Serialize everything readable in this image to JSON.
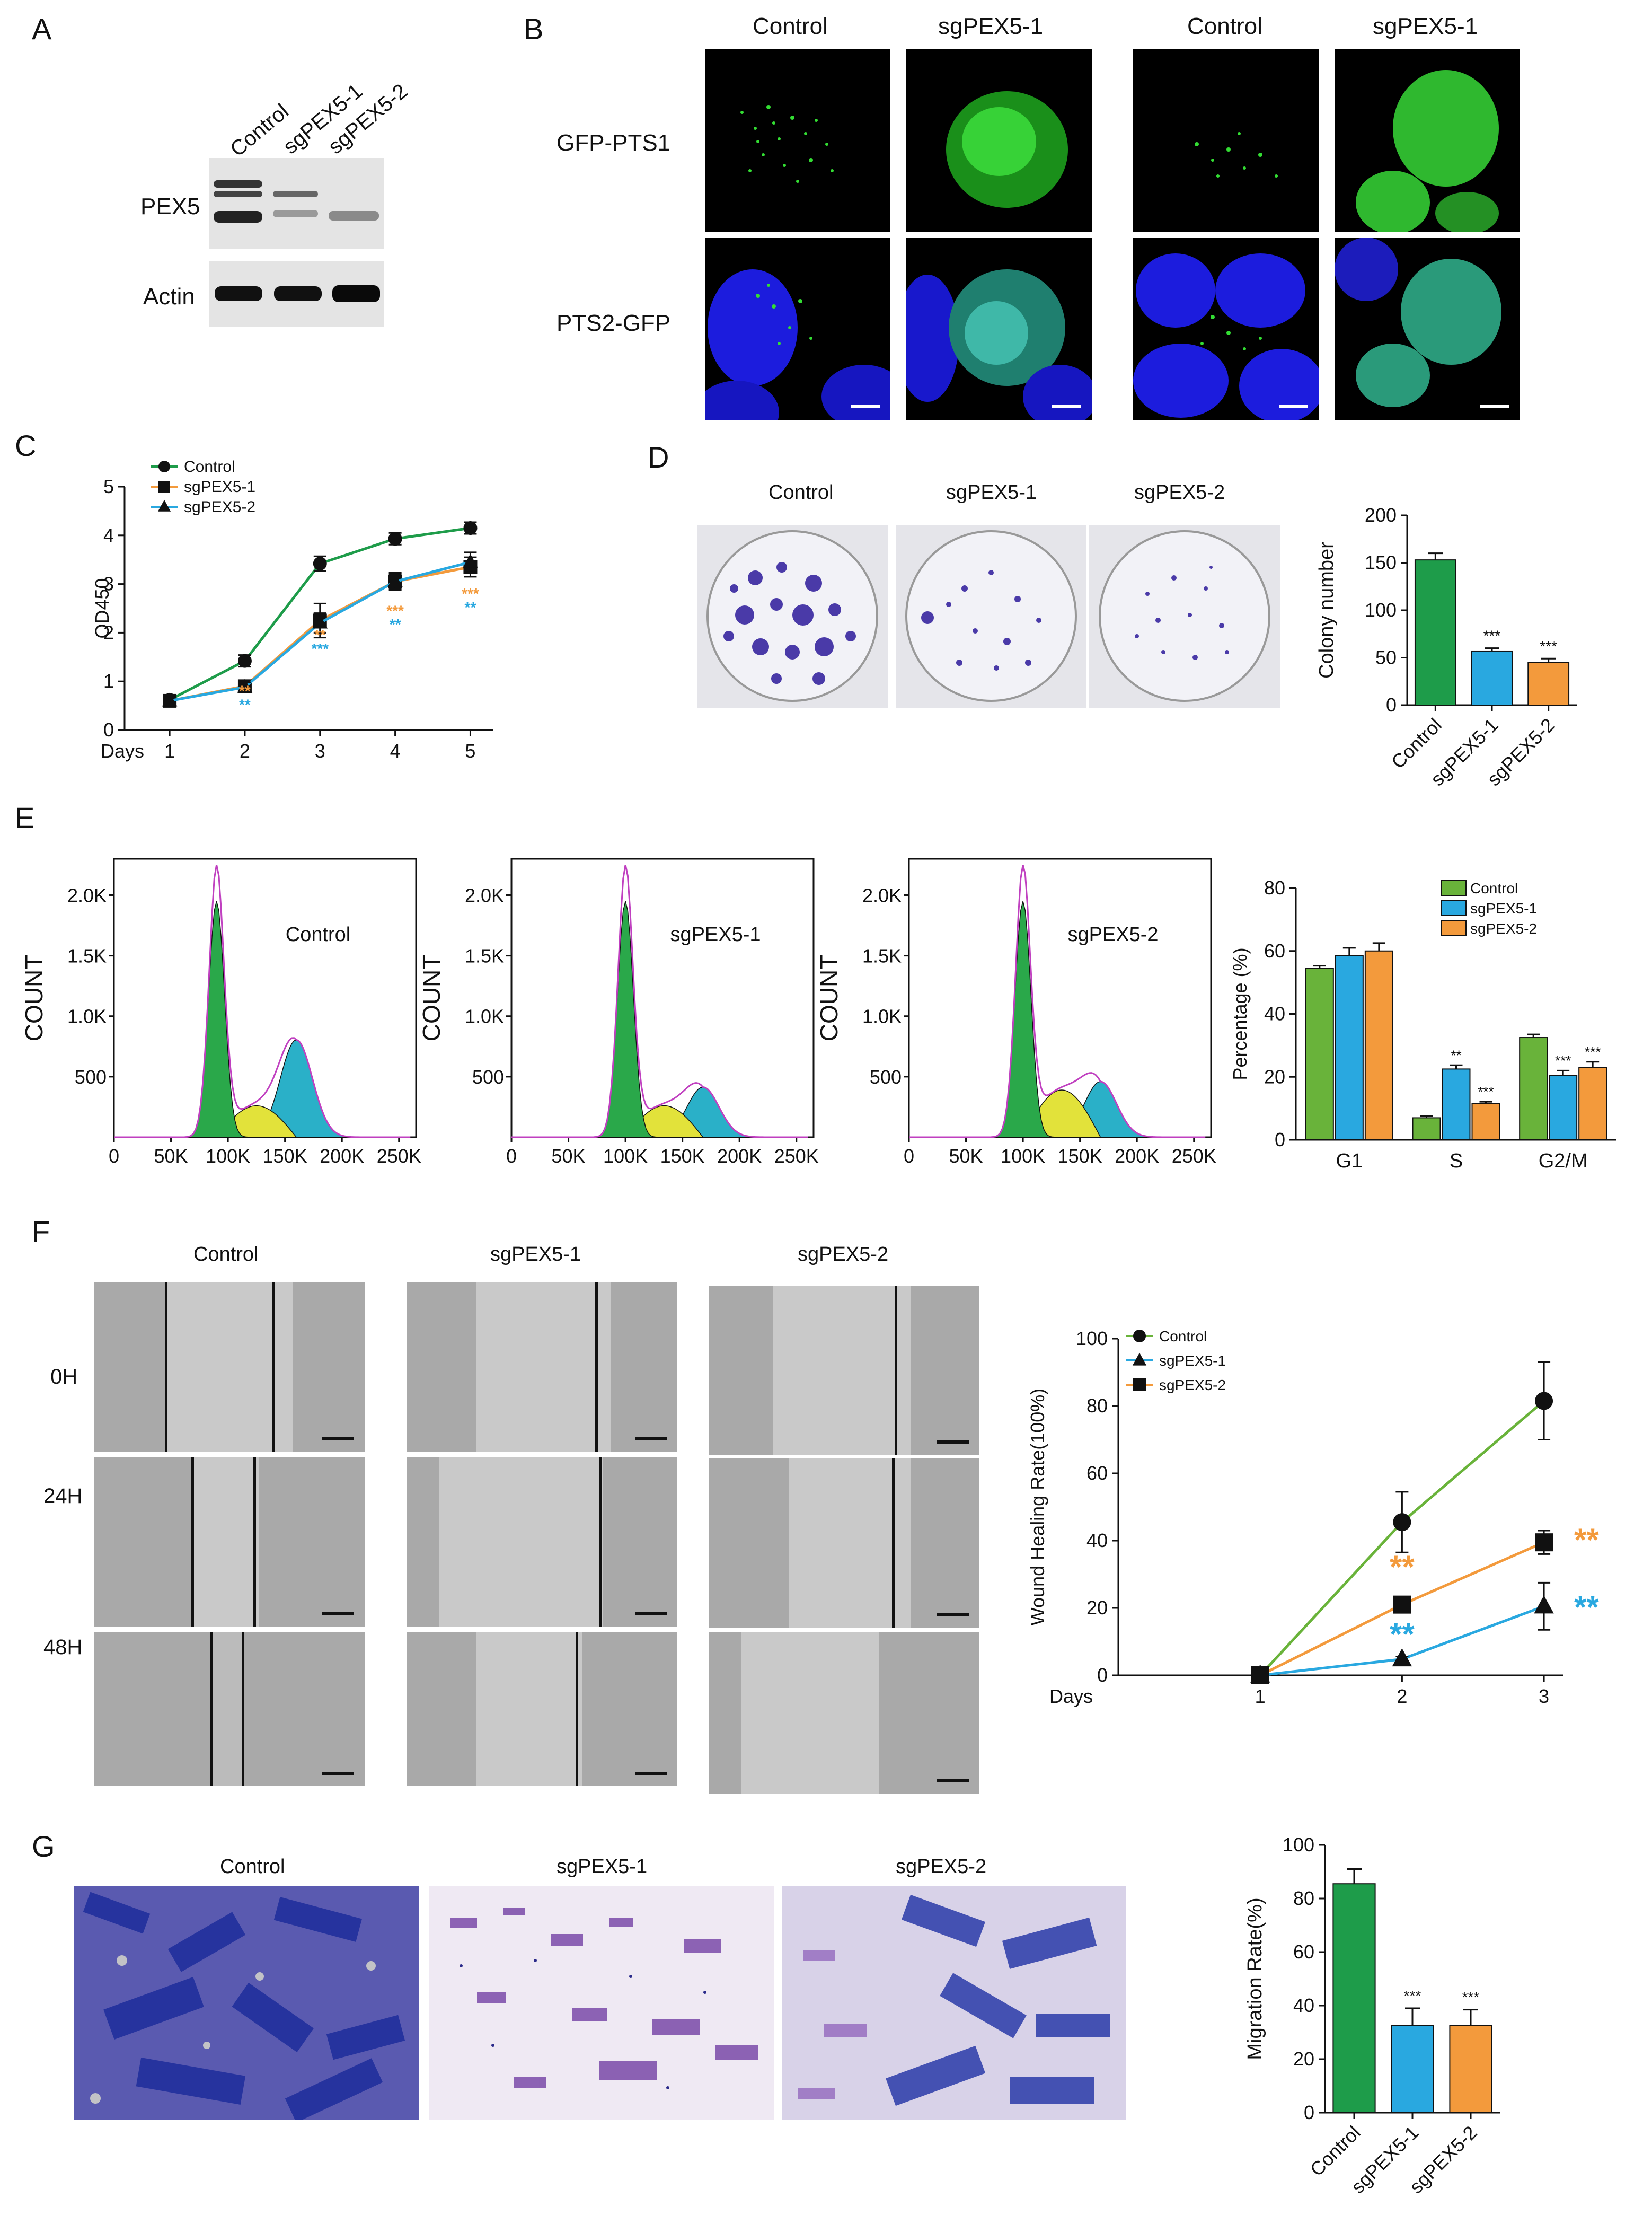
{
  "panels": {
    "A": {
      "letter": "A",
      "lanes": [
        "Control",
        "sgPEX5-1",
        "sgPEX5-2"
      ],
      "rows": [
        "PEX5",
        "Actin"
      ]
    },
    "B": {
      "letter": "B",
      "columns": [
        "Control",
        "sgPEX5-1",
        "Control",
        "sgPEX5-1"
      ],
      "rows": [
        "GFP-PTS1",
        "PTS2-GFP"
      ]
    },
    "C": {
      "letter": "C"
    },
    "D": {
      "letter": "D",
      "dishes": [
        "Control",
        "sgPEX5-1",
        "sgPEX5-2"
      ]
    },
    "E": {
      "letter": "E",
      "histograms": [
        "Control",
        "sgPEX5-1",
        "sgPEX5-2"
      ],
      "hist_ylabel": "COUNT",
      "hist_yticks": [
        "500",
        "1.0K",
        "1.5K",
        "2.0K"
      ],
      "hist_xticks": [
        "0",
        "50K",
        "100K",
        "150K",
        "200K",
        "250K"
      ]
    },
    "F": {
      "letter": "F",
      "columns": [
        "Control",
        "sgPEX5-1",
        "sgPEX5-2"
      ],
      "rows": [
        "0H",
        "24H",
        "48H"
      ]
    },
    "G": {
      "letter": "G",
      "columns": [
        "Control",
        "sgPEX5-1",
        "sgPEX5-2"
      ]
    }
  },
  "colors": {
    "control": "#1e9c4a",
    "sg1": "#29a8e0",
    "sg2": "#f39a3c",
    "ctrl_cycle": "#69b33a",
    "blue_nuclei": "#1c1cff",
    "gfp": "#1fd21f"
  },
  "chart_data": [
    {
      "id": "C",
      "type": "line",
      "xlabel": "Days",
      "ylabel": "OD450",
      "x": [
        1,
        2,
        3,
        4,
        5
      ],
      "xticks": [
        "1",
        "2",
        "3",
        "4",
        "5"
      ],
      "ylim": [
        0,
        5
      ],
      "yticks": [
        "0",
        "1",
        "2",
        "3",
        "4",
        "5"
      ],
      "legend": "top-left",
      "series": [
        {
          "name": "Control",
          "values": [
            0.62,
            1.42,
            3.42,
            3.93,
            4.15
          ],
          "err": [
            0.08,
            0.12,
            0.15,
            0.12,
            0.12
          ],
          "color": "#1e9c4a",
          "marker": "circle"
        },
        {
          "name": "sgPEX5-1",
          "values": [
            0.6,
            0.9,
            2.25,
            3.05,
            3.35
          ],
          "err": [
            0.08,
            0.1,
            0.35,
            0.18,
            0.2
          ],
          "color": "#f39a3c",
          "marker": "square"
        },
        {
          "name": "sgPEX5-2",
          "values": [
            0.6,
            0.88,
            2.2,
            3.05,
            3.45
          ],
          "err": [
            0.08,
            0.1,
            0.2,
            0.15,
            0.2
          ],
          "color": "#29a8e0",
          "marker": "triangle"
        }
      ],
      "annotations": [
        {
          "x": 2,
          "text": "**",
          "color": "#f39a3c",
          "row": 0,
          "y": 0.7
        },
        {
          "x": 2,
          "text": "**",
          "color": "#29a8e0",
          "row": 1,
          "y": 0.42
        },
        {
          "x": 3,
          "text": "**",
          "color": "#f39a3c",
          "row": 0,
          "y": 1.85
        },
        {
          "x": 3,
          "text": "***",
          "color": "#29a8e0",
          "row": 1,
          "y": 1.57
        },
        {
          "x": 4,
          "text": "***",
          "color": "#f39a3c",
          "row": 0,
          "y": 2.35
        },
        {
          "x": 4,
          "text": "**",
          "color": "#29a8e0",
          "row": 1,
          "y": 2.07
        },
        {
          "x": 5,
          "text": "***",
          "color": "#f39a3c",
          "row": 0,
          "y": 2.7
        },
        {
          "x": 5,
          "text": "**",
          "color": "#29a8e0",
          "row": 1,
          "y": 2.42
        }
      ]
    },
    {
      "id": "D",
      "type": "bar",
      "ylabel": "Colony number",
      "categories": [
        "Control",
        "sgPEX5-1",
        "sgPEX5-2"
      ],
      "values": [
        153,
        57,
        45
      ],
      "err": [
        7,
        3,
        4
      ],
      "colors": [
        "#1e9c4a",
        "#29a8e0",
        "#f39a3c"
      ],
      "ylim": [
        0,
        200
      ],
      "yticks": [
        "0",
        "50",
        "100",
        "150",
        "200"
      ],
      "sig": [
        "",
        "***",
        "***"
      ]
    },
    {
      "id": "E",
      "type": "bar",
      "ylabel": "Percentage (%)",
      "categories": [
        "G1",
        "S",
        "G2/M"
      ],
      "ylim": [
        0,
        80
      ],
      "yticks": [
        "0",
        "20",
        "40",
        "60",
        "80"
      ],
      "legend": "top-right",
      "series": [
        {
          "name": "Control",
          "values": [
            54.5,
            7,
            32.5
          ],
          "err": [
            0.8,
            0.6,
            1
          ],
          "color": "#69b33a",
          "sig": [
            "",
            "",
            ""
          ]
        },
        {
          "name": "sgPEX5-1",
          "values": [
            58.5,
            22.5,
            20.5
          ],
          "err": [
            2.5,
            1.2,
            1.5
          ],
          "color": "#29a8e0",
          "sig": [
            "",
            "**",
            "***"
          ]
        },
        {
          "name": "sgPEX5-2",
          "values": [
            60,
            11.5,
            23
          ],
          "err": [
            2.5,
            0.6,
            1.8
          ],
          "color": "#f39a3c",
          "sig": [
            "",
            "***",
            "***"
          ]
        }
      ]
    },
    {
      "id": "F",
      "type": "line",
      "xlabel": "Days",
      "ylabel": "Wound Healing Rate(100%)",
      "x": [
        1,
        2,
        3
      ],
      "xticks": [
        "1",
        "2",
        "3"
      ],
      "ylim": [
        0,
        100
      ],
      "yticks": [
        "0",
        "20",
        "40",
        "60",
        "80",
        "100"
      ],
      "legend": "top-left",
      "series": [
        {
          "name": "Control",
          "values": [
            0,
            45.5,
            81.5
          ],
          "err": [
            0,
            9,
            11.5
          ],
          "color": "#69b33a",
          "marker": "circle"
        },
        {
          "name": "sgPEX5-1",
          "values": [
            0,
            4.8,
            20.5
          ],
          "err": [
            0,
            0.8,
            7
          ],
          "color": "#29a8e0",
          "marker": "triangle"
        },
        {
          "name": "sgPEX5-2",
          "values": [
            0,
            21,
            39.5
          ],
          "err": [
            0,
            1.2,
            3.5
          ],
          "color": "#f39a3c",
          "marker": "square"
        }
      ],
      "annotations": [
        {
          "x": 2,
          "y": 29,
          "text": "**",
          "color": "#f39a3c"
        },
        {
          "x": 2,
          "y": 9,
          "text": "**",
          "color": "#29a8e0"
        },
        {
          "x": 3.3,
          "y": 37,
          "text": "**",
          "color": "#f39a3c"
        },
        {
          "x": 3.3,
          "y": 17,
          "text": "**",
          "color": "#29a8e0"
        }
      ]
    },
    {
      "id": "G",
      "type": "bar",
      "ylabel": "Migration Rate(%)",
      "categories": [
        "Control",
        "sgPEX5-1",
        "sgPEX5-2"
      ],
      "values": [
        85.5,
        32.5,
        32.5
      ],
      "err": [
        5.5,
        6.5,
        6
      ],
      "colors": [
        "#1e9c4a",
        "#29a8e0",
        "#f39a3c"
      ],
      "ylim": [
        0,
        100
      ],
      "yticks": [
        "0",
        "20",
        "40",
        "60",
        "80",
        "100"
      ],
      "sig": [
        "",
        "***",
        "***"
      ]
    }
  ]
}
